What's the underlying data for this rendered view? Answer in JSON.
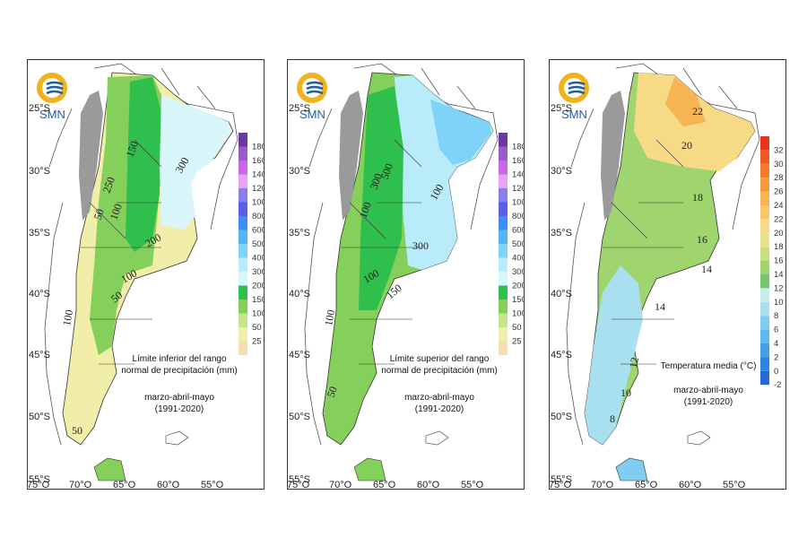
{
  "logo_text": "SMN",
  "lat_ticks": [
    "25°S",
    "30°S",
    "35°S",
    "40°S",
    "45°S",
    "50°S",
    "55°S"
  ],
  "lon_ticks": [
    "75°O",
    "70°O",
    "65°O",
    "60°O",
    "55°O"
  ],
  "panels": [
    {
      "caption_lines": [
        "Límite inferior del rango",
        "normal de precipitación (mm)"
      ],
      "period_lines": [
        "marzo-abril-mayo",
        "(1991-2020)"
      ],
      "legend": [
        "1800",
        "1600",
        "1400",
        "1200",
        "1000",
        "800",
        "600",
        "500",
        "400",
        "300",
        "200",
        "150",
        "100",
        "50",
        "25"
      ],
      "legend_colors": [
        "#6b3aa0",
        "#9b59c9",
        "#cc66e8",
        "#e7a4f5",
        "#8a7cf0",
        "#5b5fe8",
        "#3c8ff0",
        "#52b6f5",
        "#7fd3f8",
        "#b9ecfb",
        "#d9f6fa",
        "#2fbf4c",
        "#84d05a",
        "#c4e58a",
        "#f1eeaa",
        "#f5deb5"
      ],
      "contours": [
        "150",
        "250",
        "50",
        "100",
        "200",
        "100",
        "50",
        "300",
        "50",
        "100"
      ]
    },
    {
      "caption_lines": [
        "Límite superior del rango",
        "normal de precipitación (mm)"
      ],
      "period_lines": [
        "marzo-abril-mayo",
        "(1991-2020)"
      ],
      "legend": [
        "1800",
        "1600",
        "1400",
        "1200",
        "1000",
        "800",
        "600",
        "500",
        "400",
        "300",
        "200",
        "150",
        "100",
        "50",
        "25"
      ],
      "legend_colors": [
        "#6b3aa0",
        "#9b59c9",
        "#cc66e8",
        "#e7a4f5",
        "#8a7cf0",
        "#5b5fe8",
        "#3c8ff0",
        "#52b6f5",
        "#7fd3f8",
        "#b9ecfb",
        "#d9f6fa",
        "#2fbf4c",
        "#84d05a",
        "#c4e58a",
        "#f1eeaa",
        "#f5deb5"
      ],
      "contours": [
        "100",
        "300",
        "500",
        "100",
        "150",
        "100",
        "50",
        "300",
        "100"
      ]
    },
    {
      "caption_lines": [
        "Temperatura media (°C)"
      ],
      "period_lines": [
        "marzo-abril-mayo",
        "(1991-2020)"
      ],
      "legend": [
        "32",
        "30",
        "28",
        "26",
        "24",
        "22",
        "20",
        "18",
        "16",
        "14",
        "12",
        "10",
        "8",
        "6",
        "4",
        "2",
        "0",
        "-2"
      ],
      "legend_colors": [
        "#e8341c",
        "#ee5a22",
        "#f27a2a",
        "#f59a3a",
        "#f7b452",
        "#f8c868",
        "#f6da86",
        "#e6e48c",
        "#c8e07e",
        "#9fd46e",
        "#74c66a",
        "#c9ede8",
        "#a8e0ef",
        "#7fcdf0",
        "#5cb8ee",
        "#3f9fe8",
        "#2e85e0",
        "#2569d4"
      ],
      "contours": [
        "22",
        "20",
        "18",
        "16",
        "14",
        "14",
        "12",
        "10",
        "8"
      ]
    }
  ]
}
